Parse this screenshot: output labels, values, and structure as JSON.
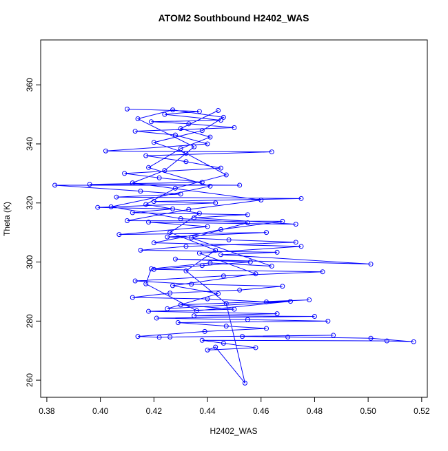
{
  "chart_data": {
    "type": "line",
    "title": "ATOM2 Southbound H2402_WAS",
    "x_label": "H2402_WAS",
    "y_label": "Theta (K)",
    "xlim": [
      0.3777,
      0.5221
    ],
    "ylim": [
      254.2,
      375.2
    ],
    "xticks": [
      0.38,
      {
        "value": 0.4,
        "label": "0.40"
      },
      0.42,
      0.44,
      0.46,
      0.48,
      {
        "value": 0.5,
        "label": "0.50"
      },
      0.52
    ],
    "yticks": [
      260,
      280,
      300,
      320,
      340,
      360
    ],
    "markers": true,
    "series": [
      {
        "color": "#0000ff",
        "x": [
          0.41,
          0.437,
          0.424,
          0.445,
          0.419,
          0.433,
          0.45,
          0.413,
          0.428,
          0.44,
          0.402,
          0.464,
          0.417,
          0.432,
          0.445,
          0.409,
          0.422,
          0.438,
          0.396,
          0.452,
          0.383,
          0.415,
          0.43,
          0.406,
          0.475,
          0.42,
          0.443,
          0.399,
          0.427,
          0.412,
          0.455,
          0.435,
          0.473,
          0.418,
          0.44,
          0.407,
          0.462,
          0.425,
          0.448,
          0.473,
          0.432,
          0.415,
          0.466,
          0.445,
          0.501,
          0.428,
          0.456,
          0.438,
          0.42,
          0.483,
          0.446,
          0.413,
          0.434,
          0.468,
          0.452,
          0.426,
          0.412,
          0.44,
          0.462,
          0.478,
          0.43,
          0.45,
          0.418,
          0.466,
          0.435,
          0.48,
          0.421,
          0.455,
          0.485,
          0.429,
          0.447,
          0.462,
          0.439,
          0.414,
          0.422,
          0.426,
          0.487,
          0.453,
          0.47,
          0.501,
          0.517,
          0.507,
          0.438,
          0.446,
          0.458,
          0.44,
          0.443,
          0.454,
          0.447,
          0.432,
          0.443,
          0.426,
          0.437,
          0.417,
          0.428,
          0.447,
          0.432,
          0.42,
          0.438,
          0.446,
          0.427,
          0.414,
          0.435,
          0.424,
          0.412,
          0.46,
          0.433,
          0.41,
          0.468,
          0.445,
          0.42,
          0.475,
          0.437,
          0.458,
          0.427,
          0.444,
          0.425,
          0.471,
          0.436,
          0.417,
          0.419,
          0.441,
          0.464,
          0.434,
          0.455,
          0.43,
          0.404,
          0.441,
          0.418,
          0.43,
          0.441,
          0.43,
          0.444
        ],
        "values": [
          351.8,
          351,
          350,
          348,
          347.5,
          346.8,
          345.5,
          344.3,
          343,
          340,
          337.6,
          337.3,
          336,
          334,
          331.8,
          330,
          328.5,
          327,
          326.3,
          326,
          326,
          324,
          323,
          322,
          321.5,
          320.5,
          320,
          318.5,
          318,
          316.7,
          316,
          315,
          312.8,
          313.5,
          312,
          309.3,
          310,
          308.5,
          307.5,
          306.7,
          305.3,
          304,
          303.3,
          302.5,
          299.3,
          301,
          300,
          298.8,
          297.5,
          296.7,
          295.3,
          293.6,
          292.5,
          291.8,
          290.5,
          289.5,
          288,
          287.5,
          286.5,
          287.2,
          285.5,
          284,
          283.3,
          282.5,
          281.8,
          281.6,
          281,
          280.5,
          280,
          279.5,
          278.3,
          277.5,
          276.5,
          274.8,
          274.5,
          274.6,
          275.2,
          274.8,
          274.6,
          274.2,
          273,
          273.3,
          273.5,
          272.5,
          271,
          270.2,
          271.2,
          259,
          286,
          297,
          304,
          310,
          316.5,
          319.5,
          325,
          329.5,
          336.8,
          340.5,
          344.5,
          349,
          351.5,
          348.5,
          339,
          331,
          326.8,
          321,
          317.8,
          314,
          313.8,
          311,
          306.5,
          305.3,
          303,
          296,
          292,
          289.3,
          284.2,
          286.7,
          283.5,
          292.6,
          297.7,
          299.7,
          298.6,
          308.2,
          313.3,
          314.7,
          318.7,
          325.7,
          332,
          338.4,
          342.3,
          345.2,
          351.3
        ]
      }
    ]
  }
}
